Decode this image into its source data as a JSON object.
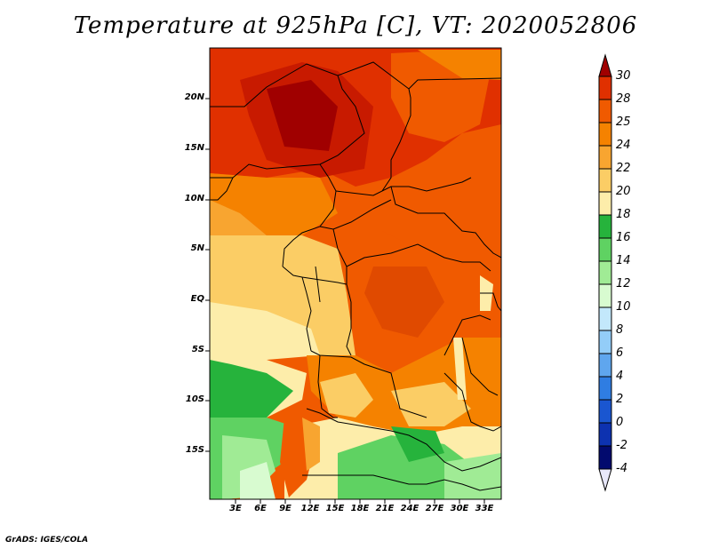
{
  "title": "Temperature at 925hPa [C], VT: 2020052806",
  "footer": "GrADS: IGES/COLA",
  "map": {
    "lat_ticks": [
      "20N",
      "15N",
      "10N",
      "5N",
      "EQ",
      "5S",
      "10S",
      "15S"
    ],
    "lon_ticks": [
      "3E",
      "6E",
      "9E",
      "12E",
      "15E",
      "18E",
      "21E",
      "24E",
      "27E",
      "30E",
      "33E"
    ]
  },
  "colorbar": {
    "labels": [
      "30",
      "28",
      "25",
      "24",
      "22",
      "20",
      "18",
      "16",
      "14",
      "12",
      "10",
      "8",
      "6",
      "4",
      "2",
      "0",
      "-2",
      "-4"
    ],
    "colors": [
      "#a00000",
      "#e03000",
      "#f05a00",
      "#f58200",
      "#f8a530",
      "#fbcd65",
      "#fdedaa",
      "#26b33c",
      "#5fd262",
      "#a0eb95",
      "#d8fbd0",
      "#c3e8fb",
      "#93cdf8",
      "#5fa6ee",
      "#2f7de2",
      "#1a56d0",
      "#0d32b0",
      "#020a6e",
      "#e8e8fb"
    ]
  }
}
